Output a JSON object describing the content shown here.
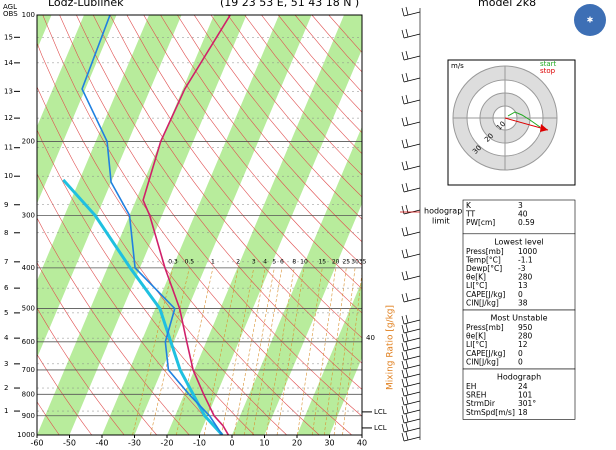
{
  "header": {
    "station": "Lodz-Lublinek",
    "coords": "(19 23 53 E, 51 43 18 N )",
    "model": "model 2k8",
    "left_top": [
      "AGL",
      "OBS"
    ]
  },
  "chart": {
    "xlim": [
      -60,
      40
    ],
    "xticks": [
      -60,
      -50,
      -40,
      -30,
      -20,
      -10,
      0,
      10,
      20,
      30,
      40
    ],
    "ylim": [
      1000,
      100
    ],
    "pressure_ticks": [
      100,
      200,
      300,
      400,
      500,
      600,
      700,
      800,
      900,
      1000
    ],
    "height_ticks": [
      {
        "km": 1,
        "pressure": 877
      },
      {
        "km": 2,
        "pressure": 773
      },
      {
        "km": 3,
        "pressure": 677
      },
      {
        "km": 4,
        "pressure": 588
      },
      {
        "km": 5,
        "pressure": 512
      },
      {
        "km": 6,
        "pressure": 447
      },
      {
        "km": 7,
        "pressure": 387
      },
      {
        "km": 8,
        "pressure": 330
      },
      {
        "km": 9,
        "pressure": 283
      },
      {
        "km": 10,
        "pressure": 242
      },
      {
        "km": 11,
        "pressure": 207
      },
      {
        "km": 12,
        "pressure": 176
      },
      {
        "km": 13,
        "pressure": 152
      },
      {
        "km": 14,
        "pressure": 130
      },
      {
        "km": 15,
        "pressure": 113
      }
    ],
    "temperature": {
      "pressure": [
        1000,
        950,
        900,
        800,
        700,
        600,
        500,
        400,
        300,
        276,
        200,
        150,
        100
      ],
      "values": [
        -1.1,
        -4,
        -8,
        -14,
        -20.4,
        -26,
        -32.5,
        -42.3,
        -53.8,
        -57.8,
        -60,
        -59.4,
        -55
      ]
    },
    "dewpoint": {
      "pressure": [
        1000,
        900,
        800,
        700,
        600,
        500,
        400,
        300,
        250,
        200,
        150,
        100
      ],
      "values": [
        -3,
        -9.4,
        -18.5,
        -28,
        -32.6,
        -34,
        -51.5,
        -60,
        -70,
        -76.5,
        -91,
        -92
      ]
    },
    "parcel": {
      "pressure": [
        1000,
        900,
        700,
        500,
        400,
        300,
        247
      ],
      "values": [
        -3,
        -10.9,
        -24.4,
        -38.6,
        -53,
        -70.6,
        -85
      ]
    },
    "mixing_ratio_label": "Mixing Ratio [g/kg]",
    "mixing_ratio": [
      0.3,
      0.5,
      1,
      2,
      3,
      4,
      5,
      6,
      8,
      10,
      15,
      20,
      25,
      30,
      35
    ],
    "outer_label": "40",
    "lcl": [
      {
        "label": "LCL",
        "pressure": 881
      },
      {
        "label": "LCL",
        "pressure": 962
      }
    ],
    "hodograph_limit": [
      "hodograph",
      "limit"
    ]
  },
  "hodograph": {
    "unit": "m/s",
    "legend": [
      "start",
      "stop"
    ],
    "rings": [
      "10",
      "20",
      "30"
    ]
  },
  "indices": {
    "rows": [
      [
        "K",
        "3"
      ],
      [
        "TT",
        "40"
      ],
      [
        "PW[cm]",
        "0.59"
      ]
    ]
  },
  "lowest": {
    "title": "Lowest level",
    "rows": [
      [
        "Press[mb]",
        "1000"
      ],
      [
        "Temp[°C]",
        "-1.1"
      ],
      [
        "Dewp[°C]",
        "-3"
      ],
      [
        "θe[K]",
        "280"
      ],
      [
        "LI[°C]",
        "13"
      ],
      [
        "CAPE[J/kg]",
        "0"
      ],
      [
        "CIN[J/kg]",
        "38"
      ]
    ]
  },
  "unstable": {
    "title": "Most Unstable",
    "rows": [
      [
        "Press[mb]",
        "950"
      ],
      [
        "θe[K]",
        "280"
      ],
      [
        "LI[°C]",
        "12"
      ],
      [
        "CAPE[J/kg]",
        "0"
      ],
      [
        "CIN[J/kg]",
        "0"
      ]
    ]
  },
  "hodo_table": {
    "title": "Hodograph",
    "rows": [
      [
        "EH",
        "24"
      ],
      [
        "SREH",
        "101"
      ],
      [
        "StrmDir",
        "301°"
      ],
      [
        "StmSpd[m/s]",
        "18"
      ]
    ]
  }
}
